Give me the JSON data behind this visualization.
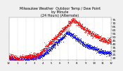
{
  "title": "Milwaukee Weather  Outdoor Temp / Dew Point\nby Minute\n(24 Hours) (Alternate)",
  "title_fontsize": 3.5,
  "bg_color": "#f0f0f0",
  "plot_bg_color": "#ffffff",
  "grid_color": "#aaaaaa",
  "temp_color": "#ff0000",
  "dew_color": "#0000ff",
  "ylim": [
    17,
    78
  ],
  "xlim": [
    0,
    1440
  ],
  "yticks": [
    20,
    25,
    30,
    35,
    40,
    45,
    50,
    55,
    60,
    65,
    70,
    75
  ],
  "ytick_labels": [
    "20",
    "25",
    "30",
    "35",
    "40",
    "45",
    "50",
    "55",
    "60",
    "65",
    "70",
    "75"
  ],
  "xtick_positions": [
    0,
    120,
    240,
    360,
    480,
    600,
    720,
    840,
    960,
    1080,
    1200,
    1320,
    1440
  ],
  "xtick_labels": [
    "12",
    "1",
    "2",
    "3",
    "4",
    "5",
    "6",
    "7",
    "8",
    "9",
    "10",
    "11",
    "12"
  ],
  "ytick_fontsize": 3.2,
  "xtick_fontsize": 2.8,
  "marker_size": 0.35,
  "num_points": 1440
}
